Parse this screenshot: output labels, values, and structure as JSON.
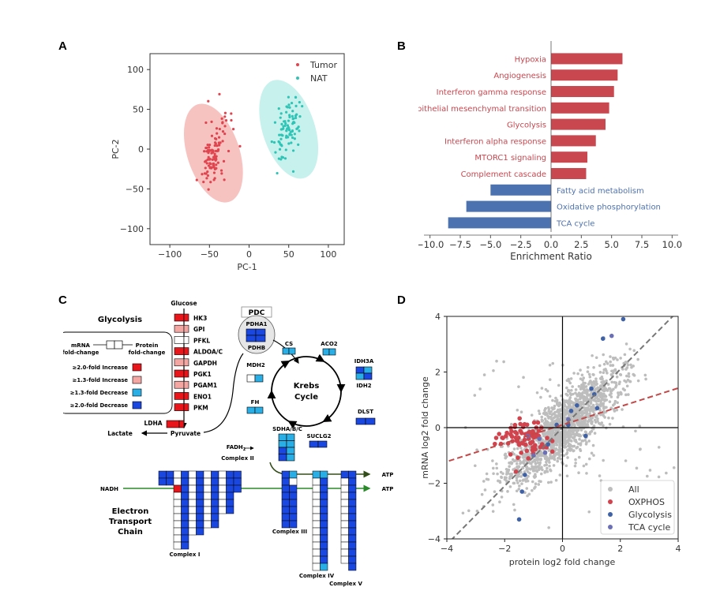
{
  "panels": {
    "a": "A",
    "b": "B",
    "c": "C",
    "d": "D"
  },
  "chart_data": [
    {
      "id": "A",
      "type": "scatter",
      "xlabel": "PC-1",
      "ylabel": "PC-2",
      "xlim": [
        -125,
        120
      ],
      "ylim": [
        -120,
        120
      ],
      "xticks": [
        -100,
        -50,
        0,
        50,
        100
      ],
      "yticks": [
        -100,
        -50,
        0,
        50,
        100
      ],
      "legend": {
        "position": "top-right",
        "items": [
          "Tumor",
          "NAT"
        ]
      },
      "colors": {
        "Tumor": "#e0454f",
        "NAT": "#2ec4b6",
        "Tumor_ellipse": "#f6b8b6",
        "NAT_ellipse": "#bdeeea"
      },
      "series": [
        {
          "name": "Tumor",
          "center": [
            -45,
            -5
          ],
          "spread": [
            15,
            28
          ],
          "count": 110
        },
        {
          "name": "NAT",
          "center": [
            50,
            25
          ],
          "spread": [
            15,
            28
          ],
          "count": 90
        }
      ]
    },
    {
      "id": "B",
      "type": "bar",
      "orientation": "horizontal",
      "xlabel": "Enrichment Ratio",
      "xlim": [
        -10.5,
        10.5
      ],
      "xticks": [
        "−10.0",
        "−7.5",
        "−5.0",
        "−2.5",
        "0.0",
        "2.5",
        "5.0",
        "7.5",
        "10.0"
      ],
      "xtick_values": [
        -10,
        -7.5,
        -5,
        -2.5,
        0,
        2.5,
        5,
        7.5,
        10
      ],
      "colors": {
        "positive": "#c9474f",
        "negative": "#4d72b0"
      },
      "categories": [
        "Hypoxia",
        "Angiogenesis",
        "Interferon gamma response",
        "Epithelial mesenchymal transition",
        "Glycolysis",
        "Interferon alpha response",
        "MTORC1 signaling",
        "Complement cascade",
        "Fatty acid metabolism",
        "Oxidative phosphorylation",
        "TCA cycle"
      ],
      "values": [
        5.9,
        5.5,
        5.2,
        4.8,
        4.5,
        3.7,
        3.0,
        2.9,
        -5.0,
        -7.0,
        -8.5
      ]
    },
    {
      "id": "D",
      "type": "scatter",
      "xlabel": "protein log2 fold change",
      "ylabel": "mRNA log2 fold change",
      "xlim": [
        -4,
        4
      ],
      "ylim": [
        -4,
        4
      ],
      "xticks": [
        "−4",
        "−2",
        "0",
        "2",
        "4"
      ],
      "yticks": [
        "−4",
        "−2",
        "0",
        "2",
        "4"
      ],
      "tick_values": [
        -4,
        -2,
        0,
        2,
        4
      ],
      "legend": {
        "position": "bottom-right",
        "items": [
          "All",
          "OXPHOS",
          "Glycolysis",
          "TCA cycle"
        ]
      },
      "colors": {
        "All": "#bdbdbd",
        "OXPHOS": "#d1434d",
        "Glycolysis": "#3f62a6",
        "TCA cycle": "#6a6fb6"
      },
      "reference_lines": [
        {
          "name": "identity",
          "slope": 1.05,
          "intercept": 0,
          "color": "#777777",
          "dash": true
        },
        {
          "name": "OXPHOS fit",
          "slope": 0.33,
          "intercept": 0.1,
          "color": "#c34848",
          "dash": true
        }
      ],
      "series": [
        {
          "name": "Glycolysis",
          "points": [
            [
              1.4,
              3.2
            ],
            [
              2.1,
              3.9
            ],
            [
              1.0,
              1.4
            ],
            [
              1.1,
              1.2
            ],
            [
              0.3,
              0.6
            ],
            [
              0.5,
              0.8
            ],
            [
              0.2,
              0.1
            ],
            [
              1.2,
              0.7
            ],
            [
              -0.5,
              -0.6
            ],
            [
              -1.3,
              -1.7
            ],
            [
              -1.4,
              -2.3
            ],
            [
              -1.5,
              -3.3
            ],
            [
              0.8,
              -0.3
            ],
            [
              -0.2,
              0.1
            ]
          ]
        },
        {
          "name": "TCA cycle",
          "points": [
            [
              1.7,
              3.3
            ],
            [
              -0.6,
              -0.9
            ],
            [
              -1.0,
              -1.0
            ],
            [
              -0.8,
              -0.4
            ],
            [
              -1.2,
              -0.3
            ],
            [
              0.2,
              0.3
            ]
          ]
        }
      ]
    }
  ],
  "pathway": {
    "glycolysis_title": "Glycolysis",
    "glucose": "Glucose",
    "pyruvate": "Pyruvate",
    "lactate": "Lactate",
    "ldha": "LDHA",
    "genes": [
      {
        "name": "HK3",
        "color": "#e8161b"
      },
      {
        "name": "GPI",
        "color": "#f4a6a3"
      },
      {
        "name": "PFKL",
        "color": "#ffffff"
      },
      {
        "name": "ALDOA/C",
        "color": "#e8161b"
      },
      {
        "name": "GAPDH",
        "color": "#f4a6a3"
      },
      {
        "name": "PGK1",
        "color": "#e8161b"
      },
      {
        "name": "PGAM1",
        "color": "#f4a6a3"
      },
      {
        "name": "ENO1",
        "color": "#e8161b"
      },
      {
        "name": "PKM",
        "color": "#e8161b"
      }
    ],
    "legend": {
      "mrna": "mRNA",
      "mrna_fc": "fold-change",
      "protein": "Protein",
      "protein_fc": "fold-change",
      "items": [
        {
          "label": "≥2.0-fold Increase",
          "color": "#e8161b"
        },
        {
          "label": "≥1.3-fold Increase",
          "color": "#f4a6a3"
        },
        {
          "label": "≥1.3-fold Decrease",
          "color": "#29aee6"
        },
        {
          "label": "≥2.0-fold Decrease",
          "color": "#1a47e0"
        }
      ]
    },
    "pdc": "PDC",
    "pdha1": "PDHA1",
    "pdhb": "PDHB",
    "krebs1": "Krebs",
    "krebs2": "Cycle",
    "cs": "CS",
    "aco2": "ACO2",
    "idh3a": "IDH3A",
    "idh2": "IDH2",
    "mdh2": "MDH2",
    "fh": "FH",
    "dlst": "DLST",
    "suclg2": "SUCLG2",
    "sdha": "SDHA/B/C",
    "fadh2": "FADH",
    "fadh2_sub": "2",
    "complex2": "Complex II",
    "nadh": "NADH",
    "atp1": "ATP",
    "atp2": "ATP",
    "etc1": "Electron",
    "etc2": "Transport",
    "etc3": "Chain",
    "complex1": "Complex I",
    "complex3": "Complex III",
    "complex4": "Complex IV",
    "complex5": "Complex V"
  }
}
